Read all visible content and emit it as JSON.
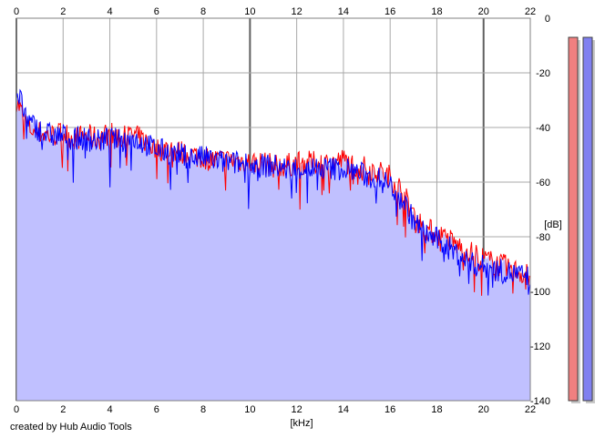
{
  "chart_data": {
    "type": "line",
    "xlabel": "[kHz]",
    "ylabel": "[dB]",
    "xlim": [
      0,
      22
    ],
    "ylim": [
      -140,
      0
    ],
    "x_ticks": [
      0,
      2,
      4,
      6,
      8,
      10,
      12,
      14,
      16,
      18,
      20,
      22
    ],
    "y_ticks": [
      0,
      -20,
      -40,
      -60,
      -80,
      -100,
      -120,
      -140
    ],
    "grid": true,
    "fill_under_spectrum": true,
    "series": [
      {
        "color": "#ff0000",
        "x": [
          0,
          0.5,
          1,
          1.5,
          2,
          2.5,
          3,
          3.5,
          4,
          4.5,
          5,
          5.5,
          6,
          6.5,
          7,
          7.5,
          8,
          8.5,
          9,
          9.5,
          10,
          10.5,
          11,
          11.5,
          12,
          12.5,
          13,
          13.5,
          14,
          14.5,
          15,
          15.5,
          16,
          16.5,
          17,
          17.5,
          18,
          18.5,
          19,
          19.5,
          20,
          20.5,
          21,
          21.5,
          22
        ],
        "values": [
          -30,
          -40,
          -42,
          -43,
          -42,
          -44,
          -43,
          -44,
          -42,
          -44,
          -43,
          -45,
          -48,
          -48,
          -49,
          -50,
          -51,
          -52,
          -52,
          -52,
          -53,
          -53,
          -54,
          -54,
          -53,
          -53,
          -53,
          -53,
          -52,
          -54,
          -55,
          -56,
          -58,
          -63,
          -72,
          -77,
          -79,
          -81,
          -84,
          -86,
          -88,
          -90,
          -91,
          -93,
          -94
        ]
      },
      {
        "color": "#0000ff",
        "x": [
          0,
          0.5,
          1,
          1.5,
          2,
          2.5,
          3,
          3.5,
          4,
          4.5,
          5,
          5.5,
          6,
          6.5,
          7,
          7.5,
          8,
          8.5,
          9,
          9.5,
          10,
          10.5,
          11,
          11.5,
          12,
          12.5,
          13,
          13.5,
          14,
          14.5,
          15,
          15.5,
          16,
          16.5,
          17,
          17.5,
          18,
          18.5,
          19,
          19.5,
          20,
          20.5,
          21,
          21.5,
          22
        ],
        "values": [
          -26,
          -38,
          -41,
          -43,
          -43,
          -44,
          -44,
          -45,
          -44,
          -45,
          -44,
          -46,
          -48,
          -49,
          -50,
          -51,
          -51,
          -52,
          -53,
          -53,
          -54,
          -54,
          -54,
          -55,
          -55,
          -55,
          -55,
          -55,
          -55,
          -56,
          -58,
          -59,
          -61,
          -66,
          -74,
          -79,
          -81,
          -84,
          -87,
          -90,
          -91,
          -92,
          -93,
          -94,
          -95
        ]
      }
    ],
    "level_meters": [
      {
        "color": "#f08080",
        "level_db": -7
      },
      {
        "color": "#8080f0",
        "level_db": -7
      }
    ]
  },
  "footer": {
    "credit": "created by Hub Audio Tools"
  }
}
